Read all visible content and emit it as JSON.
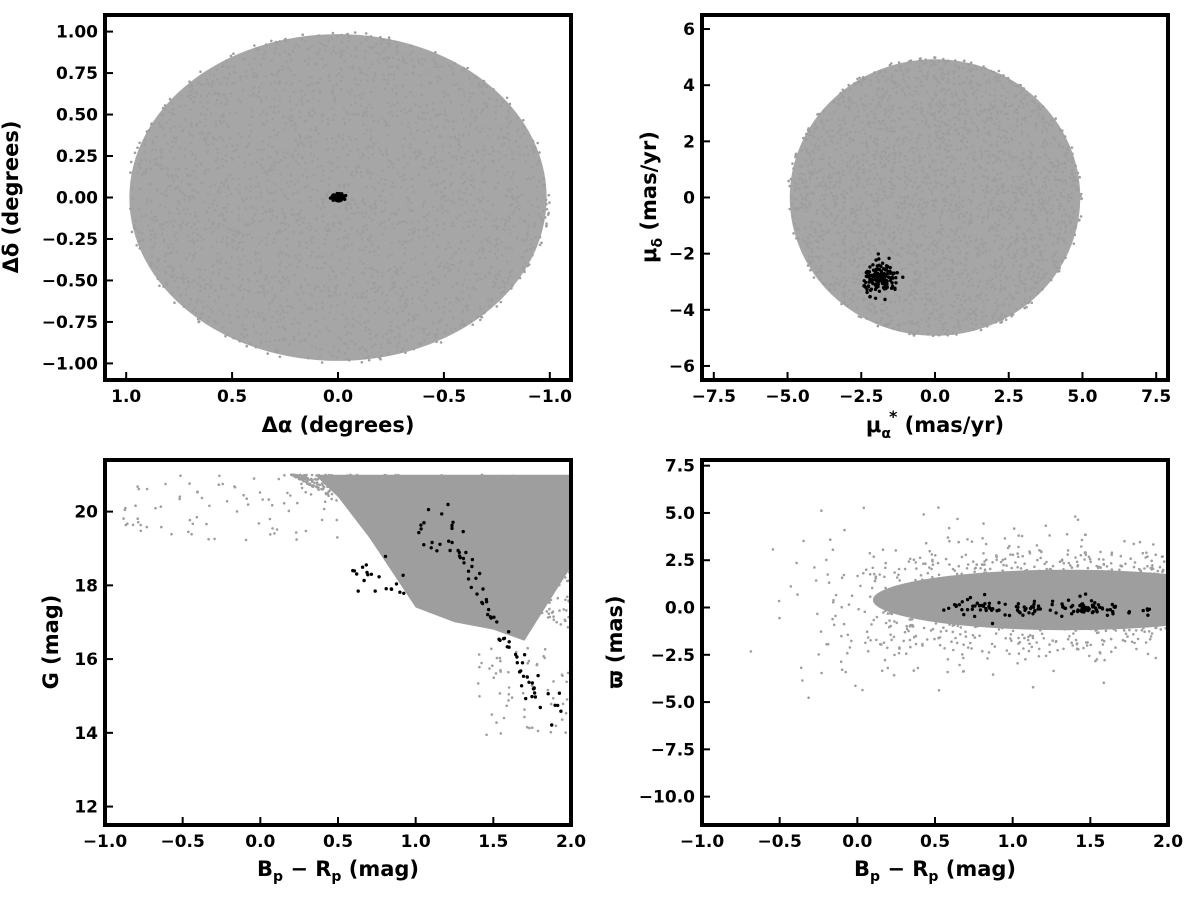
{
  "chart_data": [
    {
      "type": "scatter",
      "xlabel": "Δα (degrees)",
      "ylabel": "Δδ (degrees)",
      "xlim": [
        1.1,
        -1.1
      ],
      "ylim": [
        -1.1,
        1.1
      ],
      "xticks": [
        "1.0",
        "0.5",
        "0.0",
        "−0.5",
        "−1.0"
      ],
      "xtick_values": [
        1.0,
        0.5,
        0.0,
        -0.5,
        -1.0
      ],
      "yticks": [
        "1.00",
        "0.75",
        "0.50",
        "0.25",
        "0.00",
        "−0.25",
        "−0.50",
        "−0.75",
        "−1.00"
      ],
      "ytick_values": [
        1.0,
        0.75,
        0.5,
        0.25,
        0.0,
        -0.25,
        -0.5,
        -0.75,
        -1.0
      ],
      "series": [
        {
          "role": "field",
          "color": "#9e9e9e",
          "shape": "disk",
          "center": [
            0.0,
            0.0
          ],
          "radius": 1.0
        },
        {
          "role": "members",
          "color": "#000000",
          "shape": "cluster",
          "center": [
            0.0,
            0.0
          ],
          "spread": [
            0.02,
            0.015
          ]
        }
      ]
    },
    {
      "type": "scatter",
      "xlabel": "μα* (mas/yr)",
      "xlabel_main": "μ",
      "xlabel_sub": "α",
      "xlabel_sup": "*",
      "xlabel_unit": " (mas/yr)",
      "ylabel": "μδ (mas/yr)",
      "ylabel_main": "μ",
      "ylabel_sub": "δ",
      "ylabel_unit": " (mas/yr)",
      "xlim": [
        -7.9,
        7.9
      ],
      "ylim": [
        -6.5,
        6.5
      ],
      "xticks": [
        "−7.5",
        "−5.0",
        "−2.5",
        "0.0",
        "2.5",
        "5.0",
        "7.5"
      ],
      "xtick_values": [
        -7.5,
        -5.0,
        -2.5,
        0.0,
        2.5,
        5.0,
        7.5
      ],
      "yticks": [
        "6",
        "4",
        "2",
        "0",
        "−2",
        "−4",
        "−6"
      ],
      "ytick_values": [
        6,
        4,
        2,
        0,
        -2,
        -4,
        -6
      ],
      "series": [
        {
          "role": "field",
          "color": "#9e9e9e",
          "shape": "disk",
          "center": [
            0.0,
            0.0
          ],
          "radius": 5.0
        },
        {
          "role": "members",
          "color": "#000000",
          "shape": "cluster",
          "center": [
            -1.8,
            -2.9
          ],
          "spread": [
            0.5,
            0.45
          ]
        }
      ]
    },
    {
      "type": "scatter",
      "xlabel": "Bp − Rp (mag)",
      "xlabel_main": "B",
      "xlabel_sub": "p",
      "xlabel_mid": " − R",
      "xlabel_sub2": "p",
      "xlabel_unit": " (mag)",
      "ylabel": "G (mag)",
      "xlim": [
        -1.0,
        2.0
      ],
      "ylim": [
        11.5,
        21.4
      ],
      "xticks": [
        "−1.0",
        "−0.5",
        "0.0",
        "0.5",
        "1.0",
        "1.5",
        "2.0"
      ],
      "xtick_values": [
        -1.0,
        -0.5,
        0.0,
        0.5,
        1.0,
        1.5,
        2.0
      ],
      "yticks": [
        "20",
        "18",
        "16",
        "14",
        "12"
      ],
      "ytick_values": [
        20,
        18,
        16,
        14,
        12
      ],
      "series": [
        {
          "role": "field",
          "color": "#9e9e9e",
          "shape": "cmd",
          "faint_limit": 21.0
        },
        {
          "role": "members",
          "color": "#000000",
          "shape": "sequence",
          "points": [
            [
              0.6,
              18.3
            ],
            [
              0.7,
              18.3
            ],
            [
              0.8,
              18.1
            ],
            [
              0.9,
              18.0
            ],
            [
              1.05,
              19.5
            ],
            [
              1.1,
              19.0
            ],
            [
              1.2,
              19.8
            ],
            [
              1.25,
              19.2
            ],
            [
              1.3,
              18.8
            ],
            [
              1.35,
              18.5
            ],
            [
              1.4,
              18.0
            ],
            [
              1.45,
              17.5
            ],
            [
              1.5,
              17.0
            ],
            [
              1.55,
              16.6
            ],
            [
              1.6,
              16.2
            ],
            [
              1.65,
              15.8
            ],
            [
              1.7,
              15.4
            ],
            [
              1.75,
              15.1
            ],
            [
              1.8,
              14.9
            ],
            [
              1.88,
              14.6
            ]
          ]
        }
      ]
    },
    {
      "type": "scatter",
      "xlabel": "Bp − Rp (mag)",
      "xlabel_main": "B",
      "xlabel_sub": "p",
      "xlabel_mid": " − R",
      "xlabel_sub2": "p",
      "xlabel_unit": " (mag)",
      "ylabel": "ϖ (mas)",
      "xlim": [
        -1.0,
        2.0
      ],
      "ylim": [
        -11.5,
        7.8
      ],
      "xticks": [
        "−1.0",
        "−0.5",
        "0.0",
        "0.5",
        "1.0",
        "1.5",
        "2.0"
      ],
      "xtick_values": [
        -1.0,
        -0.5,
        0.0,
        0.5,
        1.0,
        1.5,
        2.0
      ],
      "yticks": [
        "7.5",
        "5.0",
        "2.5",
        "0.0",
        "−2.5",
        "−5.0",
        "−7.5",
        "−10.0"
      ],
      "ytick_values": [
        7.5,
        5.0,
        2.5,
        0.0,
        -2.5,
        -5.0,
        -7.5,
        -10.0
      ],
      "series": [
        {
          "role": "field",
          "color": "#9e9e9e",
          "shape": "band",
          "center_y": 0.4,
          "spread_y": 1.6
        },
        {
          "role": "members",
          "color": "#000000",
          "shape": "band",
          "x_range": [
            0.55,
            1.9
          ],
          "center_y": 0.0,
          "spread_y": 0.25
        }
      ]
    }
  ]
}
